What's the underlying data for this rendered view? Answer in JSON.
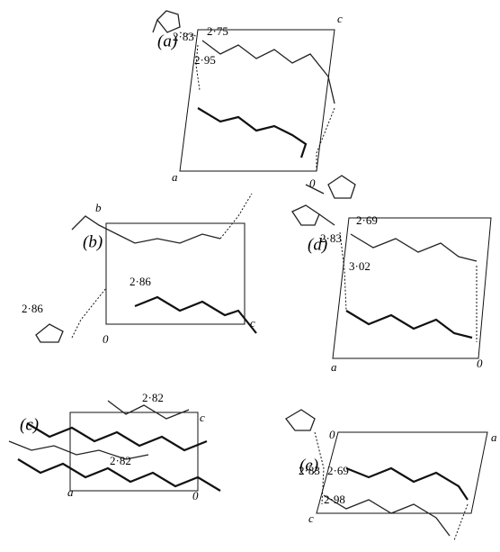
{
  "panels": [
    {
      "label": "(a)",
      "axes": [
        "c",
        "a",
        "0"
      ],
      "distances": [
        "2·83",
        "2·75",
        "2·95"
      ]
    },
    {
      "label": "(b)",
      "axes": [
        "b",
        "0",
        "c"
      ],
      "distances": [
        "2·86",
        "2·86"
      ]
    },
    {
      "label": "(c)",
      "axes": [
        "c",
        "a",
        "0"
      ],
      "distances": [
        "2·82",
        "2·82"
      ]
    },
    {
      "label": "(d)",
      "axes": [
        "a",
        "0"
      ],
      "distances": [
        "2·83",
        "2·69",
        "3·02"
      ]
    },
    {
      "label": "(e)",
      "axes": [
        "0",
        "a",
        "c"
      ],
      "distances": [
        "2·83",
        "2·69",
        "2·98"
      ]
    }
  ]
}
